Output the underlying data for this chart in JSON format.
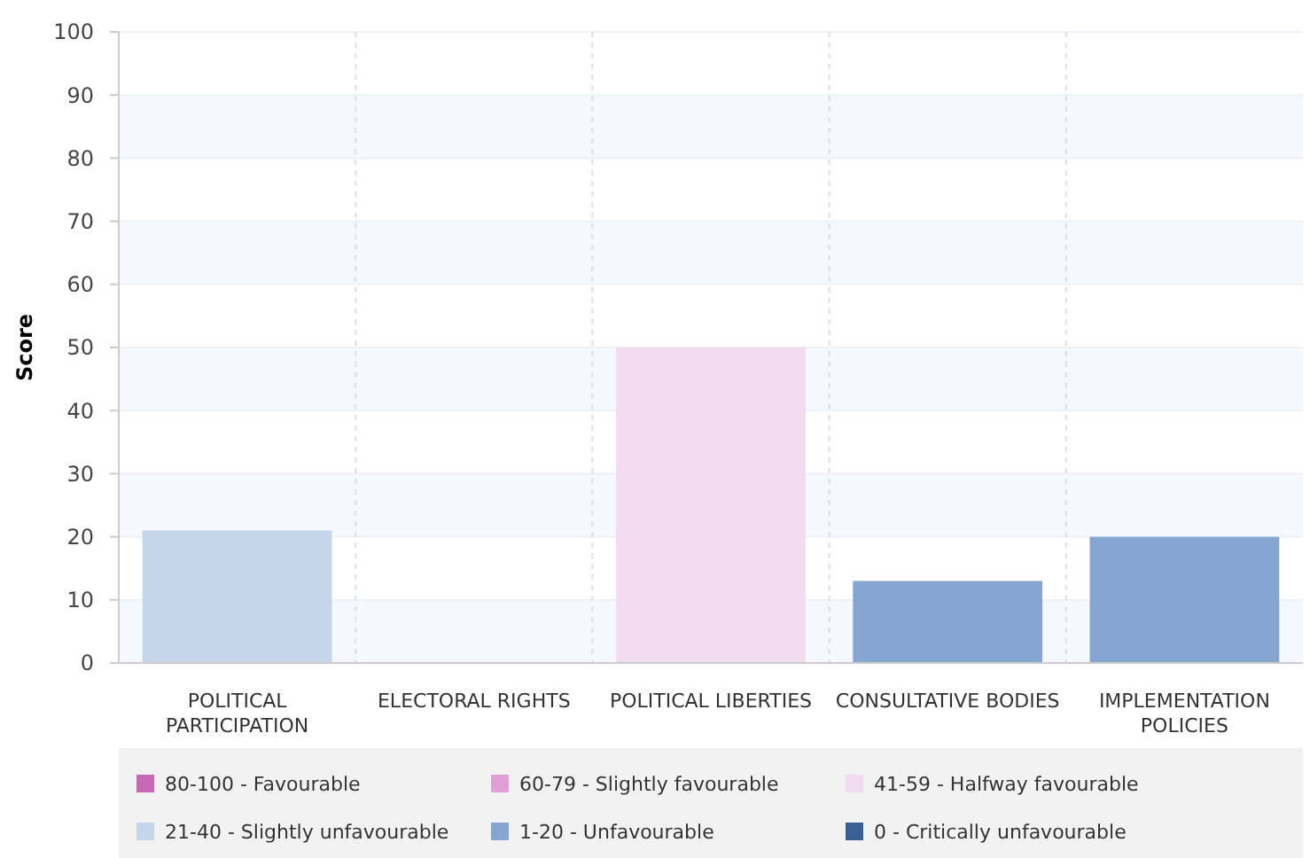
{
  "chart_data": {
    "type": "bar",
    "ylabel": "Score",
    "categories": [
      "POLITICAL PARTICIPATION",
      "ELECTORAL RIGHTS",
      "POLITICAL LIBERTIES",
      "CONSULTATIVE BODIES",
      "IMPLEMENTATION POLICIES"
    ],
    "ylim": [
      0,
      100
    ],
    "yticks": [
      0,
      10,
      20,
      30,
      40,
      50,
      60,
      70,
      80,
      90,
      100
    ],
    "grid": "y",
    "legend": "bottom",
    "series": [
      {
        "name": "80-100 - Favourable",
        "color": "#c869b5",
        "values": [
          null,
          null,
          null,
          null,
          null
        ]
      },
      {
        "name": "60-79 - Slightly favourable",
        "color": "#e0a0d5",
        "values": [
          null,
          null,
          null,
          null,
          null
        ]
      },
      {
        "name": "41-59 - Halfway favourable",
        "color": "#f0dcee",
        "values": [
          null,
          null,
          50,
          null,
          null
        ]
      },
      {
        "name": "21-40 - Slightly unfavourable",
        "color": "#c5d5ea",
        "values": [
          21,
          null,
          null,
          null,
          null
        ]
      },
      {
        "name": "1-20 - Unfavourable",
        "color": "#85a6d1",
        "values": [
          null,
          null,
          null,
          13,
          20
        ]
      },
      {
        "name": "0 - Critically unfavourable",
        "color": "#3a5f95",
        "values": [
          null,
          0,
          null,
          null,
          null
        ]
      }
    ]
  }
}
